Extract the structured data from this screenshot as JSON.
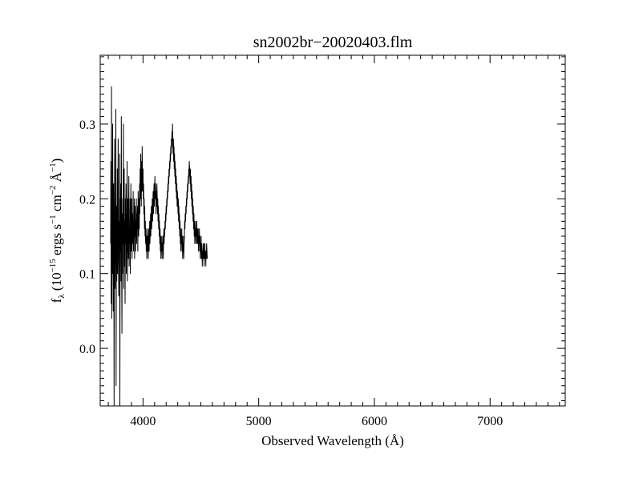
{
  "chart_data": {
    "type": "line",
    "title": "sn2002br−20020403.flm",
    "xlabel": "Observed Wavelength (Å)",
    "ylabel": {
      "main": "f",
      "sub": "λ",
      "open": " (10",
      "exp1": "−15",
      "ergs": " ergs s",
      "exp2": "−1",
      "cm": " cm",
      "exp3": "−2",
      "ang": " Å",
      "exp4": "−1",
      "close": ")"
    },
    "xlim": [
      3630,
      7650
    ],
    "ylim": [
      -0.077,
      0.392
    ],
    "xticks": [
      4000,
      5000,
      6000,
      7000
    ],
    "xtick_labels": [
      "4000",
      "5000",
      "6000",
      "7000"
    ],
    "yticks": [
      0.0,
      0.1,
      0.2,
      0.3
    ],
    "ytick_labels": [
      "0.0",
      "0.1",
      "0.2",
      "0.3"
    ],
    "grid": false,
    "legend": "none",
    "line_color": "#000000",
    "series": [
      {
        "x_start": 3720,
        "x_step": 2.5,
        "values": [
          0.14,
          0.25,
          0.06,
          0.35,
          0.04,
          0.21,
          0.1,
          0.3,
          0.15,
          0.05,
          0.22,
          0.12,
          -0.08,
          0.18,
          0.28,
          0.08,
          0.16,
          0.11,
          0.32,
          -0.05,
          0.19,
          0.09,
          0.14,
          0.24,
          0.1,
          0.18,
          0.28,
          0.12,
          0.07,
          0.17,
          0.15,
          0.26,
          -0.08,
          0.2,
          0.13,
          0.22,
          0.09,
          0.31,
          0.12,
          0.02,
          0.18,
          0.1,
          0.2,
          0.14,
          0.3,
          0.08,
          0.16,
          0.24,
          0.11,
          0.17,
          0.06,
          0.2,
          0.14,
          0.22,
          0.1,
          0.18,
          0.13,
          0.25,
          0.09,
          0.16,
          0.2,
          0.12,
          0.18,
          0.23,
          0.11,
          0.16,
          0.14,
          0.2,
          0.1,
          0.17,
          0.22,
          0.13,
          0.15,
          0.2,
          0.12,
          0.18,
          0.14,
          0.16,
          0.21,
          0.13,
          0.17,
          0.15,
          0.2,
          0.12,
          0.16,
          0.19,
          0.13,
          0.17,
          0.15,
          0.2,
          0.14,
          0.18,
          0.16,
          0.19,
          0.13,
          0.21,
          0.17,
          0.15,
          0.2,
          0.16,
          0.22,
          0.18,
          0.24,
          0.2,
          0.26,
          0.22,
          0.19,
          0.25,
          0.21,
          0.27,
          0.23,
          0.21,
          0.24,
          0.2,
          0.22,
          0.18,
          0.2,
          0.16,
          0.19,
          0.15,
          0.17,
          0.14,
          0.16,
          0.13,
          0.15,
          0.12,
          0.14,
          0.16,
          0.13,
          0.15,
          0.12,
          0.14,
          0.16,
          0.13,
          0.15,
          0.17,
          0.14,
          0.16,
          0.18,
          0.15,
          0.17,
          0.19,
          0.16,
          0.18,
          0.2,
          0.17,
          0.19,
          0.21,
          0.18,
          0.2,
          0.22,
          0.19,
          0.21,
          0.23,
          0.2,
          0.22,
          0.2,
          0.18,
          0.21,
          0.19,
          0.22,
          0.2,
          0.18,
          0.2,
          0.17,
          0.19,
          0.16,
          0.18,
          0.15,
          0.17,
          0.14,
          0.16,
          0.13,
          0.15,
          0.12,
          0.14,
          0.13,
          0.15,
          0.12,
          0.14,
          0.13,
          0.15,
          0.12,
          0.14,
          0.16,
          0.14,
          0.16,
          0.15,
          0.17,
          0.16,
          0.18,
          0.17,
          0.19,
          0.18,
          0.2,
          0.19,
          0.21,
          0.2,
          0.22,
          0.21,
          0.23,
          0.22,
          0.24,
          0.23,
          0.25,
          0.24,
          0.26,
          0.25,
          0.27,
          0.26,
          0.28,
          0.27,
          0.29,
          0.28,
          0.3,
          0.27,
          0.26,
          0.28,
          0.25,
          0.27,
          0.24,
          0.26,
          0.23,
          0.25,
          0.22,
          0.24,
          0.21,
          0.23,
          0.2,
          0.22,
          0.19,
          0.21,
          0.2,
          0.18,
          0.2,
          0.17,
          0.19,
          0.16,
          0.18,
          0.15,
          0.17,
          0.14,
          0.16,
          0.13,
          0.15,
          0.14,
          0.16,
          0.13,
          0.15,
          0.12,
          0.14,
          0.13,
          0.15,
          0.12,
          0.14,
          0.15,
          0.17,
          0.16,
          0.18,
          0.17,
          0.19,
          0.18,
          0.2,
          0.19,
          0.21,
          0.2,
          0.22,
          0.21,
          0.23,
          0.22,
          0.24,
          0.23,
          0.25,
          0.24,
          0.23,
          0.22,
          0.24,
          0.21,
          0.23,
          0.2,
          0.22,
          0.19,
          0.21,
          0.18,
          0.2,
          0.17,
          0.19,
          0.16,
          0.18,
          0.15,
          0.17,
          0.14,
          0.16,
          0.15,
          0.17,
          0.14,
          0.16,
          0.15,
          0.17,
          0.14,
          0.16,
          0.15,
          0.14,
          0.16,
          0.13,
          0.15,
          0.14,
          0.16,
          0.13,
          0.15,
          0.12,
          0.14,
          0.13,
          0.15,
          0.12,
          0.14,
          0.13,
          0.11,
          0.13,
          0.12,
          0.14,
          0.12,
          0.14,
          0.11,
          0.13,
          0.12,
          0.14,
          0.12,
          0.13,
          0.11,
          0.13,
          0.12,
          0.14,
          0.13,
          0.12
        ]
      }
    ]
  }
}
